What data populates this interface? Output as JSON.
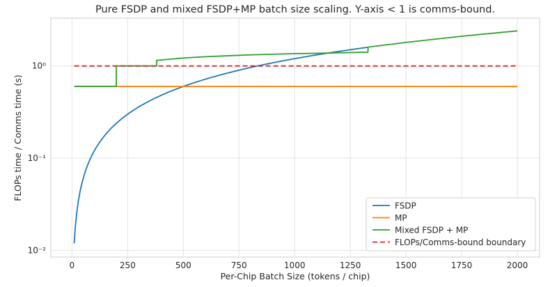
{
  "chart_data": {
    "type": "line",
    "title": "Pure FSDP and mixed FSDP+MP batch size scaling. Y-axis < 1 is comms-bound.",
    "xlabel": "Per-Chip Batch Size (tokens / chip)",
    "ylabel": "FLOPs time / Comms time (s)",
    "xlim": [
      -95,
      2100
    ],
    "ylim": [
      0.0085,
      3.3
    ],
    "yscale": "log",
    "xticks": [
      0,
      250,
      500,
      750,
      1000,
      1250,
      1500,
      1750,
      2000
    ],
    "xtick_labels": [
      "0",
      "250",
      "500",
      "750",
      "1000",
      "1250",
      "1500",
      "1750",
      "2000"
    ],
    "yticks": [
      0.01,
      0.1,
      1
    ],
    "ytick_labels": [
      "10⁻²",
      "10⁻¹",
      "10⁰"
    ],
    "grid": true,
    "legend_position": "lower-right",
    "series": [
      {
        "name": "FSDP",
        "color": "#1f77b4",
        "dash": "solid",
        "formula": "y = 0.0012 * x",
        "x_range": [
          10,
          1330
        ]
      },
      {
        "name": "MP",
        "color": "#ff7f0e",
        "dash": "solid",
        "x": [
          10,
          2000
        ],
        "y": [
          0.6,
          0.6
        ]
      },
      {
        "name": "Mixed FSDP + MP",
        "color": "#2ca02c",
        "dash": "solid",
        "x": [
          10,
          199,
          199,
          380,
          380,
          500,
          600,
          700,
          800,
          900,
          1000,
          1100,
          1200,
          1329,
          1330,
          1500,
          1750,
          2000
        ],
        "y": [
          0.6,
          0.6,
          1.0,
          1.0,
          1.15,
          1.22,
          1.26,
          1.29,
          1.32,
          1.34,
          1.36,
          1.37,
          1.39,
          1.41,
          1.6,
          1.8,
          2.1,
          2.4
        ]
      },
      {
        "name": "FLOPs/Comms-bound boundary",
        "color": "#d62728",
        "dash": "dashed",
        "x": [
          10,
          2000
        ],
        "y": [
          1.0,
          1.0
        ]
      }
    ]
  }
}
